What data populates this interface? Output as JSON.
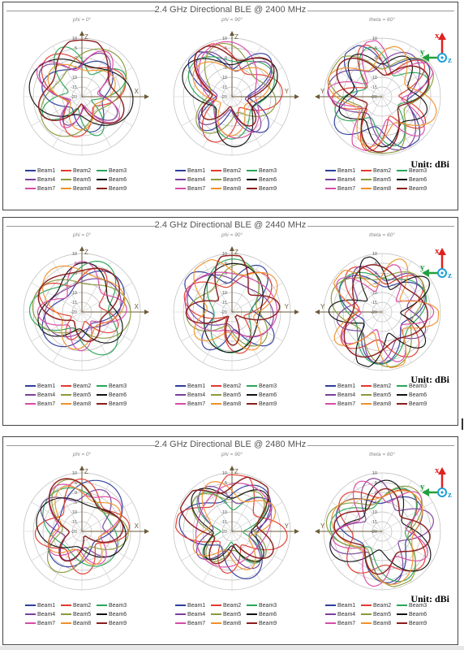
{
  "panels": [
    {
      "title": "2.4 GHz Directional BLE @ 2400 MHz",
      "unit": "Unit: dBi",
      "seed": 1
    },
    {
      "title": "2.4 GHz Directional BLE @ 2440 MHz",
      "unit": "Unit: dBi",
      "seed": 2
    },
    {
      "title": "2.4 GHz Directional BLE @ 2480 MHz",
      "unit": "Unit: dBi",
      "seed": 3
    }
  ],
  "plots": [
    {
      "subtitle": "phi = 0°",
      "vaxis": "Z",
      "haxis": "X",
      "haxis_side": "right"
    },
    {
      "subtitle": "phi = 90°",
      "vaxis": "Z",
      "haxis": "Y",
      "haxis_side": "right"
    },
    {
      "subtitle": "theta = 60°",
      "vaxis": "",
      "haxis": "Y",
      "haxis_side": "left"
    }
  ],
  "axes_icon": {
    "x": "x",
    "y": "y",
    "z": "z"
  },
  "radial_ticks": [
    "10",
    "5",
    "0",
    "-5",
    "-10",
    "-15",
    "-20"
  ],
  "series": [
    {
      "name": "Beam1",
      "color": "#2e3d9c"
    },
    {
      "name": "Beam2",
      "color": "#e23a2e"
    },
    {
      "name": "Beam3",
      "color": "#2aa55a"
    },
    {
      "name": "Beam4",
      "color": "#7b3f9a"
    },
    {
      "name": "Beam5",
      "color": "#8a9a3a"
    },
    {
      "name": "Beam6",
      "color": "#111111"
    },
    {
      "name": "Beam7",
      "color": "#d84aa6"
    },
    {
      "name": "Beam8",
      "color": "#f0912a"
    },
    {
      "name": "Beam9",
      "color": "#8a1c1c"
    }
  ],
  "chart_data": {
    "type": "polar-line",
    "r_range": [
      -20,
      10
    ],
    "r_unit": "dBi",
    "panels": [
      "2.4 GHz Directional BLE @ 2400 MHz",
      "2.4 GHz Directional BLE @ 2440 MHz",
      "2.4 GHz Directional BLE @ 2480 MHz"
    ],
    "cuts": [
      "phi = 0°",
      "phi = 90°",
      "theta = 60°"
    ],
    "series_names": [
      "Beam1",
      "Beam2",
      "Beam3",
      "Beam4",
      "Beam5",
      "Beam6",
      "Beam7",
      "Beam8",
      "Beam9"
    ]
  }
}
